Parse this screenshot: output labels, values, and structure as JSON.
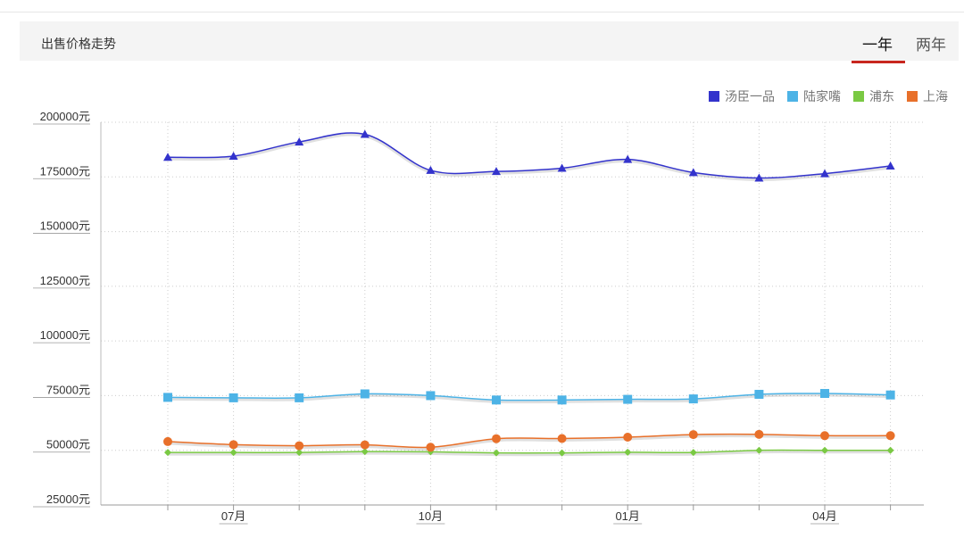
{
  "header": {
    "title": "出售价格走势",
    "tabs": [
      {
        "label": "一年",
        "active": true
      },
      {
        "label": "两年",
        "active": false
      }
    ]
  },
  "colors": {
    "accent": "#c8261f",
    "grid": "#cccccc"
  },
  "chart_data": {
    "type": "line",
    "x": [
      "2015-06",
      "2015-07",
      "2015-08",
      "2015-09",
      "2015-10",
      "2015-11",
      "2015-12",
      "2016-01",
      "2016-02",
      "2016-03",
      "2016-04",
      "2016-05"
    ],
    "x_tick_labels": [
      {
        "index": 1,
        "label": "07月"
      },
      {
        "index": 4,
        "label": "10月"
      },
      {
        "index": 7,
        "label": "01月"
      },
      {
        "index": 10,
        "label": "04月"
      }
    ],
    "y_ticks": [
      25000,
      50000,
      75000,
      100000,
      125000,
      150000,
      175000,
      200000
    ],
    "y_tick_suffix": "元",
    "ylim": [
      25000,
      200000
    ],
    "grid": true,
    "legend_position": "top-right",
    "series": [
      {
        "name": "汤臣一品",
        "color": "#3333cc",
        "marker": "triangle",
        "values": [
          184000,
          184500,
          191000,
          194500,
          178000,
          177500,
          179000,
          183000,
          177000,
          174500,
          176500,
          180000
        ]
      },
      {
        "name": "陆家嘴",
        "color": "#4db3e6",
        "marker": "square",
        "values": [
          74200,
          74000,
          74000,
          75800,
          75000,
          73000,
          73000,
          73300,
          73500,
          75600,
          76000,
          75300
        ]
      },
      {
        "name": "浦东",
        "color": "#7ac943",
        "marker": "diamond",
        "values": [
          49000,
          49000,
          49000,
          49400,
          49300,
          48800,
          48800,
          49100,
          49000,
          50000,
          50000,
          50000
        ]
      },
      {
        "name": "上海",
        "color": "#e8702a",
        "marker": "circle",
        "values": [
          54000,
          52600,
          52100,
          52500,
          51400,
          55300,
          55400,
          56000,
          57200,
          57300,
          56700,
          56700
        ]
      }
    ]
  }
}
